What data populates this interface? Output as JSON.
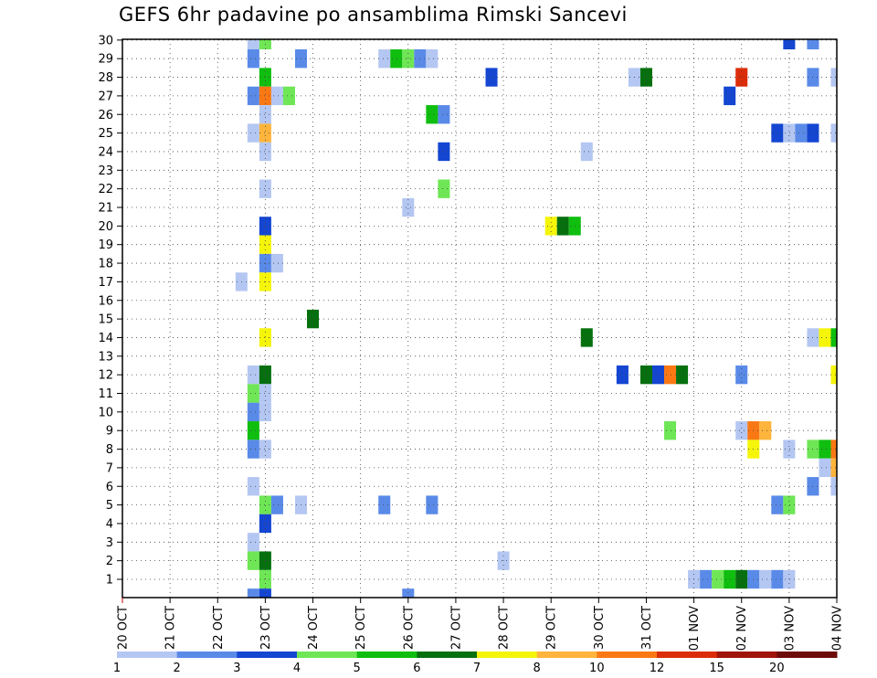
{
  "chart_data": {
    "type": "heatmap",
    "title": "GEFS 6hr padavine po ansamblima Rimski Sancevi",
    "y_categories": [
      "1",
      "2",
      "3",
      "4",
      "5",
      "6",
      "7",
      "8",
      "9",
      "10",
      "11",
      "12",
      "13",
      "14",
      "15",
      "16",
      "17",
      "18",
      "19",
      "20",
      "21",
      "22",
      "23",
      "24",
      "25",
      "26",
      "27",
      "28",
      "29",
      "30"
    ],
    "x_ticks": [
      "20 OCT",
      "21 OCT",
      "22 OCT",
      "23 OCT",
      "24 OCT",
      "25 OCT",
      "26 OCT",
      "27 OCT",
      "28 OCT",
      "29 OCT",
      "30 OCT",
      "31 OCT",
      "01 NOV",
      "02 NOV",
      "03 NOV",
      "04 NOV"
    ],
    "x_range": [
      "2020-10-20 00:00",
      "2020-11-04 00:00"
    ],
    "time_step_hours": 6,
    "grid": true,
    "colorbar": {
      "placement": "bottom",
      "labels": [
        "1",
        "2",
        "3",
        "4",
        "5",
        "6",
        "7",
        "8",
        "10",
        "12",
        "15",
        "20"
      ],
      "colors": [
        "#b4c7f2",
        "#5a8ae8",
        "#1446d2",
        "#6ee655",
        "#0fbe0f",
        "#06700f",
        "#f5f50a",
        "#ffb43c",
        "#fa7814",
        "#dc2d0a",
        "#a0140a",
        "#6e0a0a"
      ]
    },
    "cells": [
      {
        "member": 30,
        "time": "10-22 18:00",
        "value": 1.5
      },
      {
        "member": 30,
        "time": "10-23 00:00",
        "value": 4.5
      },
      {
        "member": 30,
        "time": "11-03 00:00",
        "value": 3.5
      },
      {
        "member": 30,
        "time": "11-03 12:00",
        "value": 2.5
      },
      {
        "member": 29,
        "time": "10-22 18:00",
        "value": 2.5
      },
      {
        "member": 29,
        "time": "10-23 18:00",
        "value": 2.5
      },
      {
        "member": 29,
        "time": "10-25 12:00",
        "value": 1.5
      },
      {
        "member": 29,
        "time": "10-25 18:00",
        "value": 5.5
      },
      {
        "member": 29,
        "time": "10-26 00:00",
        "value": 4.5
      },
      {
        "member": 29,
        "time": "10-26 06:00",
        "value": 2.5
      },
      {
        "member": 29,
        "time": "10-26 12:00",
        "value": 1.5
      },
      {
        "member": 28,
        "time": "10-23 00:00",
        "value": 5.5
      },
      {
        "member": 28,
        "time": "10-27 18:00",
        "value": 3.5
      },
      {
        "member": 28,
        "time": "10-30 18:00",
        "value": 1.5
      },
      {
        "member": 28,
        "time": "10-31 00:00",
        "value": 6.5
      },
      {
        "member": 28,
        "time": "11-02 00:00",
        "value": 13.5
      },
      {
        "member": 28,
        "time": "11-03 12:00",
        "value": 2.5
      },
      {
        "member": 28,
        "time": "11-04 00:00",
        "value": 1.5
      },
      {
        "member": 27,
        "time": "10-22 18:00",
        "value": 2.5
      },
      {
        "member": 27,
        "time": "10-23 00:00",
        "value": 11
      },
      {
        "member": 27,
        "time": "10-23 06:00",
        "value": 1.5
      },
      {
        "member": 27,
        "time": "10-23 12:00",
        "value": 4.5
      },
      {
        "member": 27,
        "time": "11-01 18:00",
        "value": 3.5
      },
      {
        "member": 26,
        "time": "10-23 00:00",
        "value": 1.5
      },
      {
        "member": 26,
        "time": "10-26 12:00",
        "value": 5.5
      },
      {
        "member": 26,
        "time": "10-26 18:00",
        "value": 2.5
      },
      {
        "member": 25,
        "time": "10-22 18:00",
        "value": 1.5
      },
      {
        "member": 25,
        "time": "10-23 00:00",
        "value": 9
      },
      {
        "member": 25,
        "time": "11-02 18:00",
        "value": 3.5
      },
      {
        "member": 25,
        "time": "11-03 00:00",
        "value": 1.5
      },
      {
        "member": 25,
        "time": "11-03 06:00",
        "value": 2.5
      },
      {
        "member": 25,
        "time": "11-03 12:00",
        "value": 3.5
      },
      {
        "member": 25,
        "time": "11-04 00:00",
        "value": 1.5
      },
      {
        "member": 24,
        "time": "10-23 00:00",
        "value": 1.5
      },
      {
        "member": 24,
        "time": "10-26 18:00",
        "value": 3.5
      },
      {
        "member": 24,
        "time": "10-29 18:00",
        "value": 1.5
      },
      {
        "member": 22,
        "time": "10-23 00:00",
        "value": 1.5
      },
      {
        "member": 22,
        "time": "10-26 18:00",
        "value": 4.5
      },
      {
        "member": 21,
        "time": "10-26 00:00",
        "value": 1.5
      },
      {
        "member": 20,
        "time": "10-23 00:00",
        "value": 3.5
      },
      {
        "member": 20,
        "time": "10-29 00:00",
        "value": 7.5
      },
      {
        "member": 20,
        "time": "10-29 06:00",
        "value": 6.5
      },
      {
        "member": 20,
        "time": "10-29 12:00",
        "value": 5.5
      },
      {
        "member": 19,
        "time": "10-23 00:00",
        "value": 7.5
      },
      {
        "member": 18,
        "time": "10-23 00:00",
        "value": 2.5
      },
      {
        "member": 18,
        "time": "10-23 06:00",
        "value": 1.5
      },
      {
        "member": 17,
        "time": "10-22 12:00",
        "value": 1.5
      },
      {
        "member": 17,
        "time": "10-23 00:00",
        "value": 7.5
      },
      {
        "member": 15,
        "time": "10-24 00:00",
        "value": 6.5
      },
      {
        "member": 14,
        "time": "10-23 00:00",
        "value": 7.5
      },
      {
        "member": 14,
        "time": "10-29 18:00",
        "value": 6.5
      },
      {
        "member": 14,
        "time": "11-03 12:00",
        "value": 1.5
      },
      {
        "member": 14,
        "time": "11-03 18:00",
        "value": 7.5
      },
      {
        "member": 14,
        "time": "11-04 00:00",
        "value": 5.5
      },
      {
        "member": 12,
        "time": "10-22 18:00",
        "value": 1.5
      },
      {
        "member": 12,
        "time": "10-23 00:00",
        "value": 6.5
      },
      {
        "member": 12,
        "time": "10-30 12:00",
        "value": 3.5
      },
      {
        "member": 12,
        "time": "10-31 00:00",
        "value": 6.5
      },
      {
        "member": 12,
        "time": "10-31 06:00",
        "value": 3.5
      },
      {
        "member": 12,
        "time": "10-31 12:00",
        "value": 11
      },
      {
        "member": 12,
        "time": "10-31 18:00",
        "value": 6.5
      },
      {
        "member": 12,
        "time": "11-02 00:00",
        "value": 2.5
      },
      {
        "member": 12,
        "time": "11-04 00:00",
        "value": 7.5
      },
      {
        "member": 11,
        "time": "10-22 18:00",
        "value": 4.5
      },
      {
        "member": 11,
        "time": "10-23 00:00",
        "value": 1.5
      },
      {
        "member": 10,
        "time": "10-22 18:00",
        "value": 2.5
      },
      {
        "member": 10,
        "time": "10-23 00:00",
        "value": 1.5
      },
      {
        "member": 9,
        "time": "10-22 18:00",
        "value": 5.5
      },
      {
        "member": 9,
        "time": "10-31 12:00",
        "value": 4.5
      },
      {
        "member": 9,
        "time": "11-02 00:00",
        "value": 1.5
      },
      {
        "member": 9,
        "time": "11-02 06:00",
        "value": 11
      },
      {
        "member": 9,
        "time": "11-02 12:00",
        "value": 9
      },
      {
        "member": 8,
        "time": "10-22 18:00",
        "value": 2.5
      },
      {
        "member": 8,
        "time": "10-23 00:00",
        "value": 1.5
      },
      {
        "member": 8,
        "time": "11-02 06:00",
        "value": 7.5
      },
      {
        "member": 8,
        "time": "11-03 00:00",
        "value": 1.5
      },
      {
        "member": 8,
        "time": "11-03 12:00",
        "value": 4.5
      },
      {
        "member": 8,
        "time": "11-03 18:00",
        "value": 5.5
      },
      {
        "member": 8,
        "time": "11-04 00:00",
        "value": 11
      },
      {
        "member": 7,
        "time": "11-03 18:00",
        "value": 1.5
      },
      {
        "member": 7,
        "time": "11-04 00:00",
        "value": 9
      },
      {
        "member": 6,
        "time": "10-22 18:00",
        "value": 1.5
      },
      {
        "member": 6,
        "time": "11-03 12:00",
        "value": 2.5
      },
      {
        "member": 6,
        "time": "11-04 00:00",
        "value": 1.5
      },
      {
        "member": 5,
        "time": "10-23 00:00",
        "value": 4.5
      },
      {
        "member": 5,
        "time": "10-23 06:00",
        "value": 2.5
      },
      {
        "member": 5,
        "time": "10-23 18:00",
        "value": 1.5
      },
      {
        "member": 5,
        "time": "10-25 12:00",
        "value": 2.5
      },
      {
        "member": 5,
        "time": "10-26 12:00",
        "value": 2.5
      },
      {
        "member": 5,
        "time": "11-02 18:00",
        "value": 2.5
      },
      {
        "member": 5,
        "time": "11-03 00:00",
        "value": 4.5
      },
      {
        "member": 4,
        "time": "10-23 00:00",
        "value": 3.5
      },
      {
        "member": 3,
        "time": "10-22 18:00",
        "value": 1.5
      },
      {
        "member": 2,
        "time": "10-22 18:00",
        "value": 4.5
      },
      {
        "member": 2,
        "time": "10-23 00:00",
        "value": 6.5
      },
      {
        "member": 2,
        "time": "10-28 00:00",
        "value": 1.5
      },
      {
        "member": 1,
        "time": "10-23 00:00",
        "value": 4.5
      },
      {
        "member": 1,
        "time": "11-01 00:00",
        "value": 1.5
      },
      {
        "member": 1,
        "time": "11-01 06:00",
        "value": 2.5
      },
      {
        "member": 1,
        "time": "11-01 12:00",
        "value": 4.5
      },
      {
        "member": 1,
        "time": "11-01 18:00",
        "value": 5.5
      },
      {
        "member": 1,
        "time": "11-02 00:00",
        "value": 6.5
      },
      {
        "member": 1,
        "time": "11-02 06:00",
        "value": 2.5
      },
      {
        "member": 1,
        "time": "11-02 12:00",
        "value": 1.5
      },
      {
        "member": 1,
        "time": "11-02 18:00",
        "value": 2.5
      },
      {
        "member": 1,
        "time": "11-03 00:00",
        "value": 1.5
      },
      {
        "member": 0,
        "time": "10-22 18:00",
        "value": 2.5
      },
      {
        "member": 0,
        "time": "10-23 00:00",
        "value": 3.5
      },
      {
        "member": 0,
        "time": "10-26 00:00",
        "value": 2.5
      }
    ]
  }
}
